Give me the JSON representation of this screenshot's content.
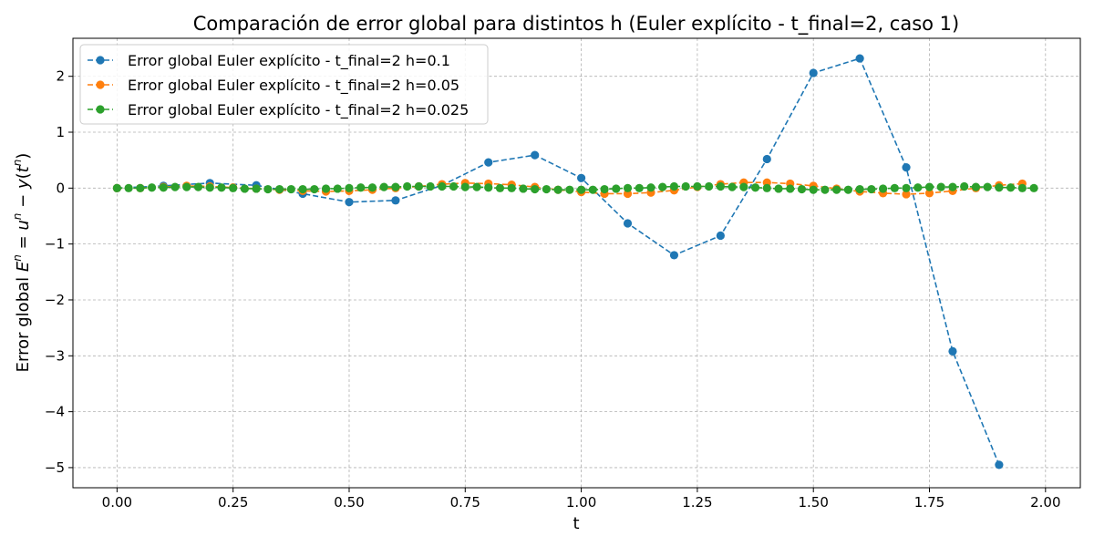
{
  "chart_data": {
    "type": "line",
    "title": "Comparación de error global para distintos h (Euler explícito - t_final=2, caso 1)",
    "xlabel": "t",
    "ylabel": "Error global E^n = u^n − y(t^n)",
    "xlim": [
      -0.095,
      2.075
    ],
    "ylim": [
      -5.36,
      2.68
    ],
    "xticks": [
      0.0,
      0.25,
      0.5,
      0.75,
      1.0,
      1.25,
      1.5,
      1.75,
      2.0
    ],
    "xtick_labels": [
      "0.00",
      "0.25",
      "0.50",
      "0.75",
      "1.00",
      "1.25",
      "1.50",
      "1.75",
      "2.00"
    ],
    "yticks": [
      -5,
      -4,
      -3,
      -2,
      -1,
      0,
      1,
      2
    ],
    "ytick_labels": [
      "−5",
      "−4",
      "−3",
      "−2",
      "−1",
      "0",
      "1",
      "2"
    ],
    "grid": true,
    "legend_position": "top-left",
    "series": [
      {
        "name": "Error global Euler explícito - t_final=2 h=0.1",
        "color": "#1f77b4",
        "x": [
          0.0,
          0.1,
          0.2,
          0.3,
          0.4,
          0.5,
          0.6,
          0.7,
          0.8,
          0.9,
          1.0,
          1.1,
          1.2,
          1.3,
          1.4,
          1.5,
          1.6,
          1.7,
          1.8,
          1.9
        ],
        "y": [
          0.0,
          0.04,
          0.09,
          0.05,
          -0.1,
          -0.25,
          -0.22,
          0.05,
          0.46,
          0.59,
          0.18,
          -0.63,
          -1.2,
          -0.85,
          0.52,
          2.06,
          2.32,
          0.37,
          -2.92,
          -4.95
        ]
      },
      {
        "name": "Error global Euler explícito - t_final=2 h=0.05",
        "color": "#ff7f0e",
        "x": [
          0.0,
          0.05,
          0.1,
          0.15,
          0.2,
          0.25,
          0.3,
          0.35,
          0.4,
          0.45,
          0.5,
          0.55,
          0.6,
          0.65,
          0.7,
          0.75,
          0.8,
          0.85,
          0.9,
          0.95,
          1.0,
          1.05,
          1.1,
          1.15,
          1.2,
          1.25,
          1.3,
          1.35,
          1.4,
          1.45,
          1.5,
          1.55,
          1.6,
          1.65,
          1.7,
          1.75,
          1.8,
          1.85,
          1.9,
          1.95
        ],
        "y": [
          0.0,
          0.0,
          0.02,
          0.04,
          0.03,
          0.01,
          -0.01,
          -0.03,
          -0.05,
          -0.06,
          -0.05,
          -0.03,
          0.0,
          0.03,
          0.07,
          0.09,
          0.08,
          0.06,
          0.02,
          -0.03,
          -0.07,
          -0.1,
          -0.1,
          -0.08,
          -0.04,
          0.02,
          0.07,
          0.1,
          0.1,
          0.08,
          0.04,
          -0.01,
          -0.06,
          -0.09,
          -0.11,
          -0.09,
          -0.05,
          0.0,
          0.05,
          0.08
        ]
      },
      {
        "name": "Error global Euler explícito - t_final=2 h=0.025",
        "color": "#2ca02c",
        "x": [
          0.0,
          0.025,
          0.05,
          0.075,
          0.1,
          0.125,
          0.15,
          0.175,
          0.2,
          0.225,
          0.25,
          0.275,
          0.3,
          0.325,
          0.35,
          0.375,
          0.4,
          0.425,
          0.45,
          0.475,
          0.5,
          0.525,
          0.55,
          0.575,
          0.6,
          0.625,
          0.65,
          0.675,
          0.7,
          0.725,
          0.75,
          0.775,
          0.8,
          0.825,
          0.85,
          0.875,
          0.9,
          0.925,
          0.95,
          0.975,
          1.0,
          1.025,
          1.05,
          1.075,
          1.1,
          1.125,
          1.15,
          1.175,
          1.2,
          1.225,
          1.25,
          1.275,
          1.3,
          1.325,
          1.35,
          1.375,
          1.4,
          1.425,
          1.45,
          1.475,
          1.5,
          1.525,
          1.55,
          1.575,
          1.6,
          1.625,
          1.65,
          1.675,
          1.7,
          1.725,
          1.75,
          1.775,
          1.8,
          1.825,
          1.85,
          1.875,
          1.9,
          1.925,
          1.95,
          1.975
        ],
        "y": [
          0.0,
          0.0,
          0.0,
          0.01,
          0.01,
          0.02,
          0.02,
          0.02,
          0.01,
          0.01,
          0.0,
          -0.01,
          -0.01,
          -0.02,
          -0.02,
          -0.02,
          -0.02,
          -0.02,
          -0.01,
          -0.01,
          0.0,
          0.01,
          0.01,
          0.02,
          0.02,
          0.03,
          0.03,
          0.03,
          0.03,
          0.03,
          0.02,
          0.02,
          0.01,
          0.0,
          0.0,
          -0.01,
          -0.02,
          -0.02,
          -0.03,
          -0.03,
          -0.03,
          -0.03,
          -0.02,
          -0.01,
          0.0,
          0.0,
          0.01,
          0.02,
          0.03,
          0.03,
          0.03,
          0.03,
          0.03,
          0.02,
          0.02,
          0.01,
          0.0,
          -0.01,
          -0.01,
          -0.02,
          -0.03,
          -0.03,
          -0.03,
          -0.03,
          -0.02,
          -0.02,
          -0.01,
          0.0,
          0.0,
          0.01,
          0.02,
          0.02,
          0.02,
          0.03,
          0.02,
          0.02,
          0.01,
          0.01,
          0.0,
          0.0
        ]
      }
    ]
  }
}
